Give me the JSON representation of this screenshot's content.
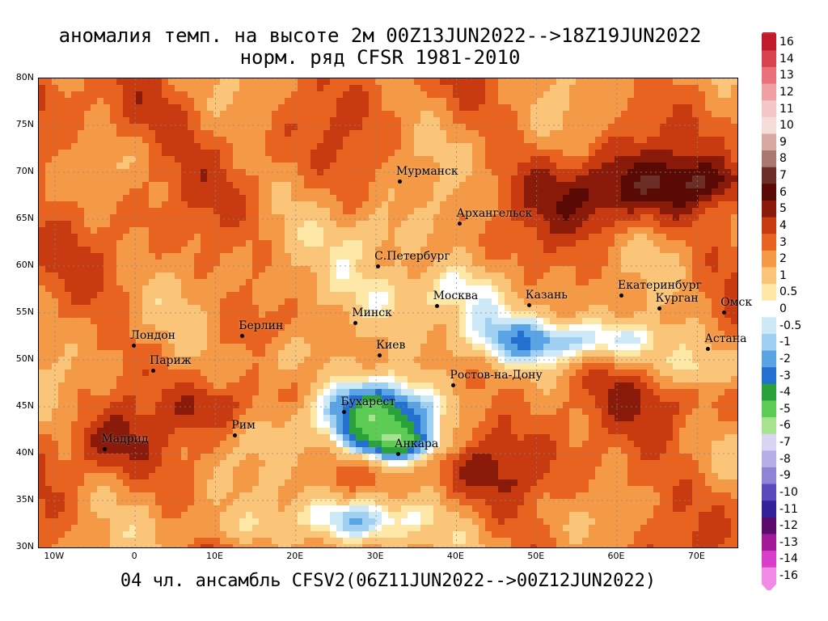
{
  "title_line1": "аномалия темп. на высоте 2м 00Z13JUN2022-->18Z19JUN2022",
  "title_line2": "норм. ряд CFSR 1981-2010",
  "bottom_caption": "04 чл. ансамбль CFSV2(06Z11JUN2022-->00Z12JUN2022)",
  "lat_labels": [
    "80N",
    "75N",
    "70N",
    "65N",
    "60N",
    "55N",
    "50N",
    "45N",
    "40N",
    "35N",
    "30N"
  ],
  "lon_labels": [
    "10W",
    "0",
    "10E",
    "20E",
    "30E",
    "40E",
    "50E",
    "60E",
    "70E"
  ],
  "cities": [
    {
      "name": "Мурманск",
      "lon": 33,
      "lat": 69
    },
    {
      "name": "Архангельск",
      "lon": 40.5,
      "lat": 64.5
    },
    {
      "name": "С.Петербург",
      "lon": 30.3,
      "lat": 59.9
    },
    {
      "name": "Москва",
      "lon": 37.6,
      "lat": 55.7
    },
    {
      "name": "Казань",
      "lon": 49.1,
      "lat": 55.8
    },
    {
      "name": "Екатеринбург",
      "lon": 60.6,
      "lat": 56.8
    },
    {
      "name": "Курган",
      "lon": 65.3,
      "lat": 55.4
    },
    {
      "name": "Омск",
      "lon": 73.4,
      "lat": 55
    },
    {
      "name": "Астана",
      "lon": 71.4,
      "lat": 51.1
    },
    {
      "name": "Минск",
      "lon": 27.5,
      "lat": 53.9
    },
    {
      "name": "Берлин",
      "lon": 13.4,
      "lat": 52.5
    },
    {
      "name": "Лондон",
      "lon": -0.1,
      "lat": 51.5
    },
    {
      "name": "Париж",
      "lon": 2.3,
      "lat": 48.8
    },
    {
      "name": "Киев",
      "lon": 30.5,
      "lat": 50.4
    },
    {
      "name": "Ростов-на-Дону",
      "lon": 39.7,
      "lat": 47.2
    },
    {
      "name": "Бухарест",
      "lon": 26.1,
      "lat": 44.4
    },
    {
      "name": "Рим",
      "lon": 12.5,
      "lat": 41.9
    },
    {
      "name": "Мадрид",
      "lon": -3.7,
      "lat": 40.4
    },
    {
      "name": "Анкара",
      "lon": 32.8,
      "lat": 39.9
    }
  ],
  "legend": {
    "labels": [
      "16",
      "14",
      "13",
      "12",
      "11",
      "10",
      "9",
      "8",
      "7",
      "6",
      "5",
      "4",
      "3",
      "2",
      "1",
      "0.5",
      "0",
      "-0.5",
      "-1",
      "-2",
      "-3",
      "-4",
      "-5",
      "-6",
      "-7",
      "-8",
      "-9",
      "-10",
      "-11",
      "-12",
      "-13",
      "-14",
      "-16"
    ],
    "colors": [
      "#c21a2d",
      "#d9434f",
      "#e8717a",
      "#f0a0a4",
      "#f5c6c6",
      "#f7ddd9",
      "#d6a9a3",
      "#a87870",
      "#6b2f27",
      "#5a0a05",
      "#8a1a0a",
      "#c83a10",
      "#e8631f",
      "#f49a46",
      "#fbc579",
      "#fde8a8",
      "#ffffff",
      "#cde8f7",
      "#9fd0f2",
      "#5aa4e6",
      "#2470d0",
      "#2aa13a",
      "#5ccc55",
      "#a6e28f",
      "#d9d5f2",
      "#b6aee6",
      "#8d84d6",
      "#5a4bbd",
      "#33229a",
      "#5c0a6b",
      "#a11a9a",
      "#d83ec9",
      "#f08ce6"
    ]
  },
  "field": {
    "lon_min": -12,
    "lon_max": 75,
    "lat_min": 30,
    "lat_max": 80,
    "base_anomaly": 3.0,
    "blobs": [
      {
        "lon": -2,
        "lat": 76,
        "sx": 10,
        "sy": 4,
        "a": 1.5
      },
      {
        "lon": 60,
        "lat": 68,
        "sx": 9,
        "sy": 4,
        "a": 3.5
      },
      {
        "lon": 72,
        "lat": 69,
        "sx": 5,
        "sy": 2.5,
        "a": 3.0
      },
      {
        "lon": -4,
        "lat": 41,
        "sx": 5,
        "sy": 3,
        "a": 2.0
      },
      {
        "lon": 10,
        "lat": 45,
        "sx": 5,
        "sy": 2.5,
        "a": 2.0
      },
      {
        "lon": 50,
        "lat": 38,
        "sx": 12,
        "sy": 4,
        "a": 1.5
      },
      {
        "lon": 68,
        "lat": 45,
        "sx": 8,
        "sy": 4,
        "a": 1.5
      },
      {
        "lon": 35,
        "lat": 57,
        "sx": 10,
        "sy": 4,
        "a": -3.5
      },
      {
        "lon": 55,
        "lat": 52,
        "sx": 14,
        "sy": 2.5,
        "a": -4.0
      },
      {
        "lon": 30,
        "lat": 44,
        "sx": 9,
        "sy": 3.5,
        "a": -6.0
      },
      {
        "lon": 33,
        "lat": 41,
        "sx": 6,
        "sy": 1.8,
        "a": -4.0
      },
      {
        "lon": 28,
        "lat": 33,
        "sx": 8,
        "sy": 3,
        "a": -5.0
      },
      {
        "lon": 18,
        "lat": 50,
        "sx": 5,
        "sy": 3,
        "a": -2.5
      },
      {
        "lon": 30,
        "lat": 63,
        "sx": 5,
        "sy": 3,
        "a": -2.0
      },
      {
        "lon": 70,
        "lat": 49,
        "sx": 5,
        "sy": 2,
        "a": -2.5
      },
      {
        "lon": 10,
        "lat": 32,
        "sx": 6,
        "sy": 2,
        "a": -1.5
      }
    ]
  }
}
